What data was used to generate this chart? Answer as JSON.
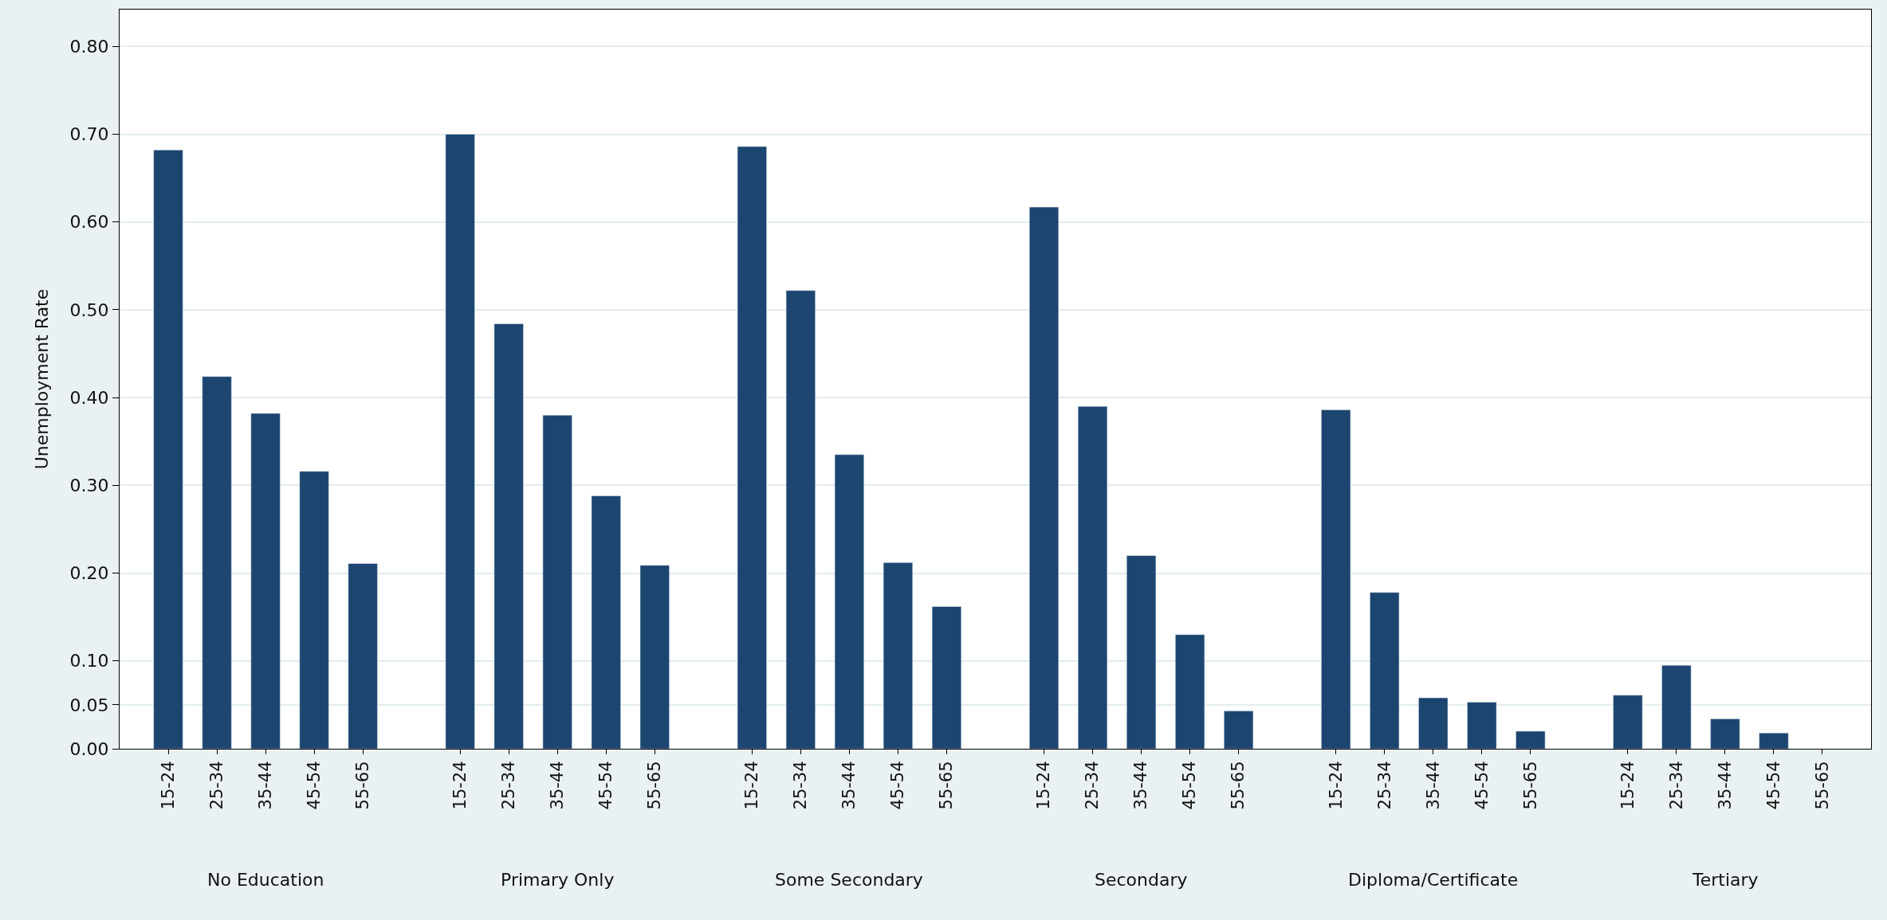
{
  "chart_data": {
    "type": "bar",
    "ylabel": "Unemployment Rate",
    "categories": [
      "15-24",
      "25-34",
      "35-44",
      "45-54",
      "55-65",
      null,
      "15-24",
      "25-34",
      "35-44",
      "45-54",
      "55-65",
      null,
      "15-24",
      "25-34",
      "35-44",
      "45-54",
      "55-65",
      null,
      "15-24",
      "25-34",
      "35-44",
      "45-54",
      "55-65",
      null,
      "15-24",
      "25-34",
      "35-44",
      "45-54",
      "55-65",
      null,
      "15-24",
      "25-34",
      "35-44",
      "45-54",
      "55-65"
    ],
    "values": [
      0.682,
      0.424,
      0.382,
      0.316,
      0.211,
      null,
      0.7,
      0.484,
      0.38,
      0.288,
      0.209,
      null,
      0.686,
      0.522,
      0.335,
      0.212,
      0.162,
      null,
      0.617,
      0.39,
      0.22,
      0.13,
      0.043,
      null,
      0.386,
      0.178,
      0.058,
      0.053,
      0.02,
      null,
      0.061,
      0.095,
      0.034,
      0.018,
      null
    ],
    "color": "#1c4670",
    "annotations": [
      "No Education",
      "Primary Only",
      "Some Secondary",
      "Secondary",
      "Diploma/Certificate",
      "Tertiary"
    ],
    "ylim": [
      0,
      0.842
    ],
    "yticks": [
      {
        "value": 0,
        "label": "0.00"
      },
      {
        "value": 0.05,
        "label": "0.05"
      },
      {
        "value": 0.1,
        "label": "0.10"
      },
      {
        "value": 0.2,
        "label": "0.20"
      },
      {
        "value": 0.3,
        "label": "0.30"
      },
      {
        "value": 0.4,
        "label": "0.40"
      },
      {
        "value": 0.5,
        "label": "0.50"
      },
      {
        "value": 0.6,
        "label": "0.60"
      },
      {
        "value": 0.7,
        "label": "0.70"
      },
      {
        "value": 0.8,
        "label": "0.80"
      }
    ],
    "grid": "y"
  }
}
